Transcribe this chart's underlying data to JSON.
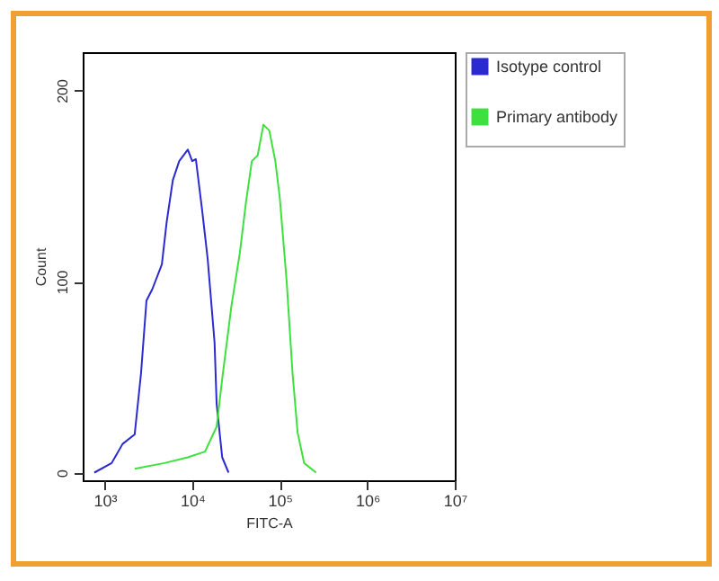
{
  "chart_data": {
    "type": "line",
    "xlabel": "FITC-A",
    "ylabel": "Count",
    "log": "x",
    "xlim": [
      560,
      10000000
    ],
    "ylim": [
      -4,
      220
    ],
    "xticks": [
      {
        "value": 1000,
        "label": "10³"
      },
      {
        "value": 10000,
        "label": "10⁴"
      },
      {
        "value": 100000,
        "label": "10⁵"
      },
      {
        "value": 1000000,
        "label": "10⁶"
      },
      {
        "value": 10000000,
        "label": "10⁷"
      }
    ],
    "yticks": [
      0,
      100,
      200
    ],
    "grid": false,
    "legend": "top right",
    "marker": "none",
    "line_style": "solid",
    "series": [
      {
        "name": "Isotype control",
        "color": "#2a2ad0",
        "x": [
          760,
          1200,
          1600,
          2200,
          2600,
          3000,
          3500,
          4500,
          5100,
          6000,
          7100,
          8900,
          10000,
          11000,
          13000,
          15000,
          18000,
          19000,
          22000,
          26000
        ],
        "values": [
          0,
          5,
          15,
          20,
          52,
          90,
          96,
          109,
          131,
          153,
          163,
          169,
          163,
          164,
          137,
          112,
          68,
          36,
          8,
          0
        ]
      },
      {
        "name": "Primary antibody",
        "color": "#3ee03e",
        "x": [
          2200,
          4800,
          8900,
          14000,
          19000,
          22000,
          28000,
          35000,
          41000,
          48000,
          56000,
          65000,
          76000,
          89000,
          100000,
          120000,
          140000,
          160000,
          190000,
          260000
        ],
        "values": [
          2,
          5,
          8,
          11,
          24,
          49,
          87,
          115,
          141,
          163,
          166,
          182,
          179,
          163,
          144,
          100,
          52,
          21,
          5,
          0
        ]
      }
    ]
  }
}
